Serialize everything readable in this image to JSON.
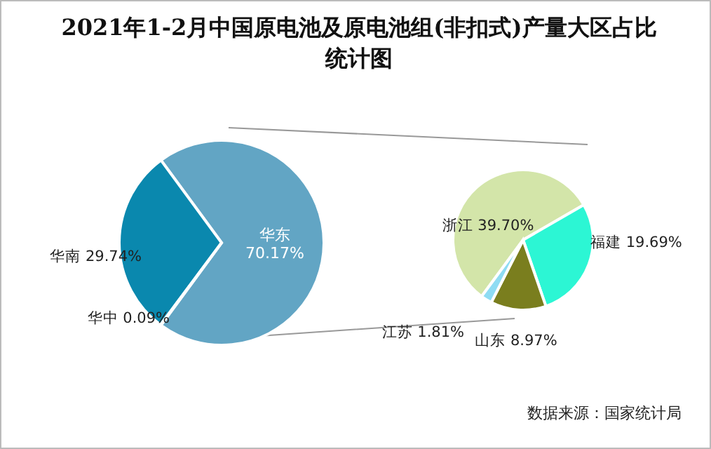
{
  "chart_data": [
    {
      "type": "pie",
      "title": "2021年1-2月中国原电池及原电池组(非扣式)产量大区占比统计图",
      "categories": [
        "华东",
        "华南",
        "华中"
      ],
      "values": [
        70.17,
        29.74,
        0.09
      ],
      "colors": [
        "#62a5c4",
        "#0a88ae",
        "#0a88ae"
      ],
      "value_labels": [
        "70.17%",
        "29.74%",
        "0.09%"
      ],
      "legend": false
    },
    {
      "type": "pie",
      "categories": [
        "浙江",
        "福建",
        "山东",
        "江苏"
      ],
      "values": [
        39.7,
        19.69,
        8.97,
        1.81
      ],
      "colors": [
        "#d3e5a9",
        "#2cf6d4",
        "#7a7e1e",
        "#8edcf3"
      ],
      "value_labels": [
        "39.70%",
        "19.69%",
        "8.97%",
        "1.81%"
      ],
      "legend": false,
      "annotations": [
        "数据来源：国家统计局"
      ]
    }
  ]
}
